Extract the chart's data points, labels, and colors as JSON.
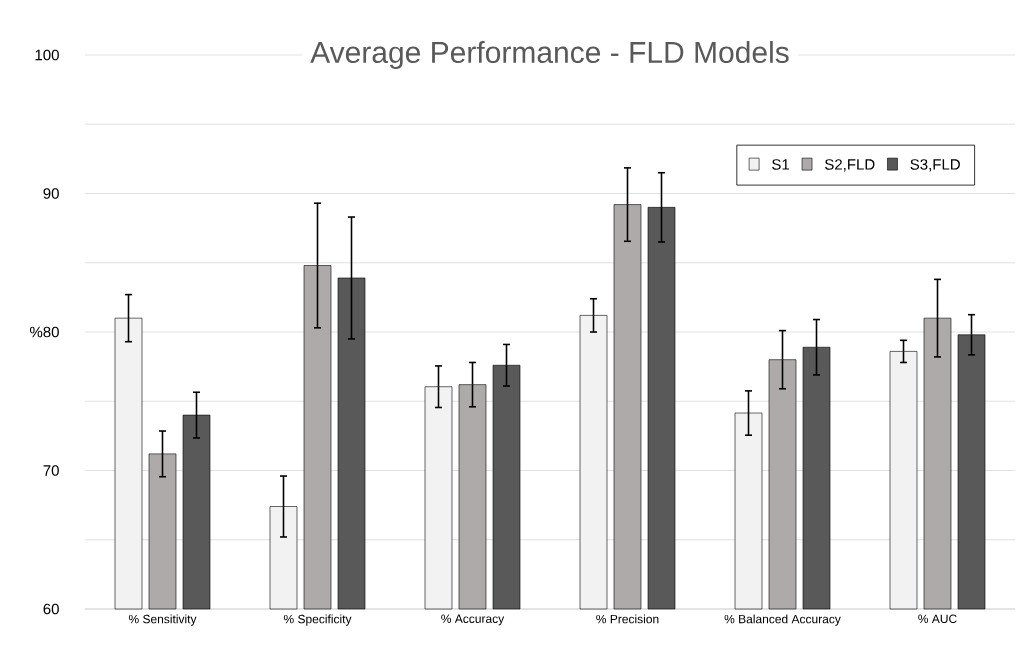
{
  "chart_data": {
    "type": "bar",
    "title": "Average Performance - FLD Models",
    "categories": [
      "% Sensitivity",
      "% Specificity",
      "% Accuracy",
      "% Precision",
      "% Balanced Accuracy",
      "% AUC"
    ],
    "series": [
      {
        "name": "S1",
        "color": "#f2f2f2",
        "values": [
          81.0,
          67.4,
          76.05,
          81.2,
          74.15,
          78.6
        ],
        "errors": [
          1.7,
          2.2,
          1.5,
          1.2,
          1.6,
          0.8
        ]
      },
      {
        "name": "S2,FLD",
        "color": "#aeaaaa",
        "values": [
          71.2,
          84.8,
          76.2,
          89.2,
          78.0,
          81.0
        ],
        "errors": [
          1.65,
          4.5,
          1.6,
          2.65,
          2.1,
          2.8
        ]
      },
      {
        "name": "S3,FLD",
        "color": "#595959",
        "values": [
          74.0,
          83.9,
          77.6,
          89.0,
          78.9,
          79.8
        ],
        "errors": [
          1.65,
          4.4,
          1.5,
          2.5,
          2.0,
          1.45
        ]
      }
    ],
    "ylim": [
      60,
      100
    ],
    "yticks": [
      60,
      {
        "value": 65,
        "label": null
      },
      70,
      {
        "value": 75,
        "label": null
      },
      {
        "value": 80,
        "label": "%80"
      },
      {
        "value": 85,
        "label": null
      },
      90,
      {
        "value": 95,
        "label": null
      },
      100
    ],
    "grid": "y",
    "legend": "top right"
  }
}
